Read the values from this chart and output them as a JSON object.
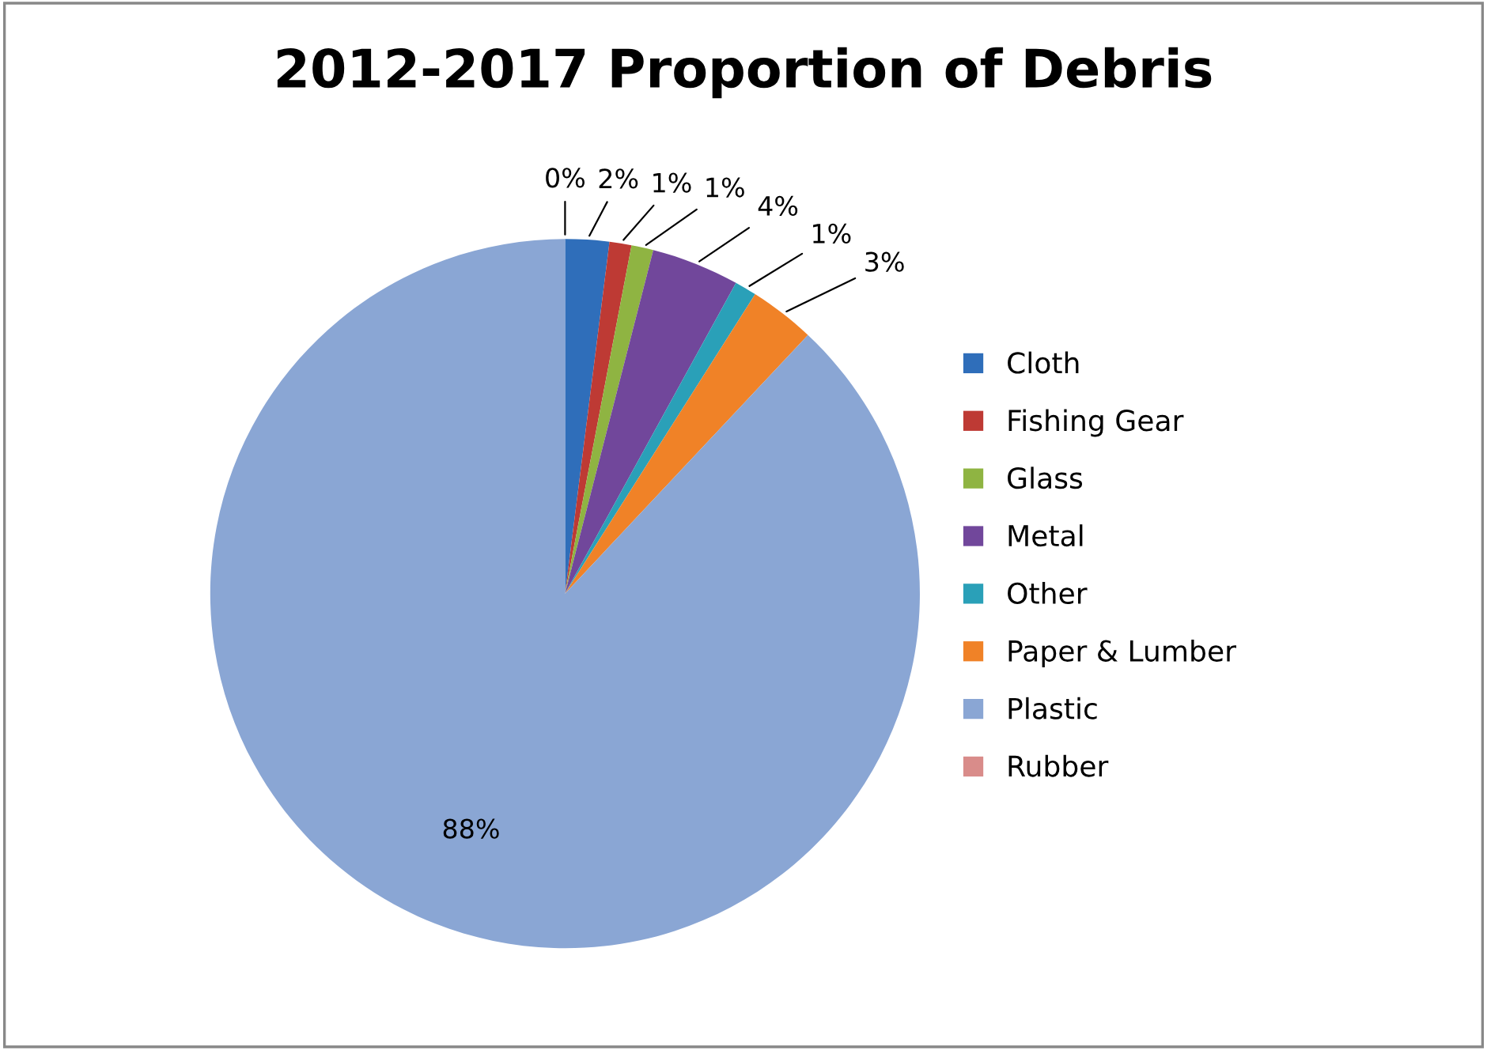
{
  "chart_data": {
    "type": "pie",
    "title": "2012-2017 Proportion of Debris",
    "categories": [
      "Cloth",
      "Fishing Gear",
      "Glass",
      "Metal",
      "Other",
      "Paper & Lumber",
      "Plastic",
      "Rubber"
    ],
    "values": [
      2,
      1,
      1,
      4,
      1,
      3,
      88,
      0
    ],
    "colors": [
      "#2f6eba",
      "#be3a34",
      "#8fb442",
      "#71479b",
      "#2aa0b8",
      "#f08227",
      "#8aa6d4",
      "#d98c8a"
    ],
    "value_labels": [
      "2%",
      "1%",
      "1%",
      "4%",
      "1%",
      "3%",
      "88%",
      "0%"
    ],
    "legend": "right"
  }
}
